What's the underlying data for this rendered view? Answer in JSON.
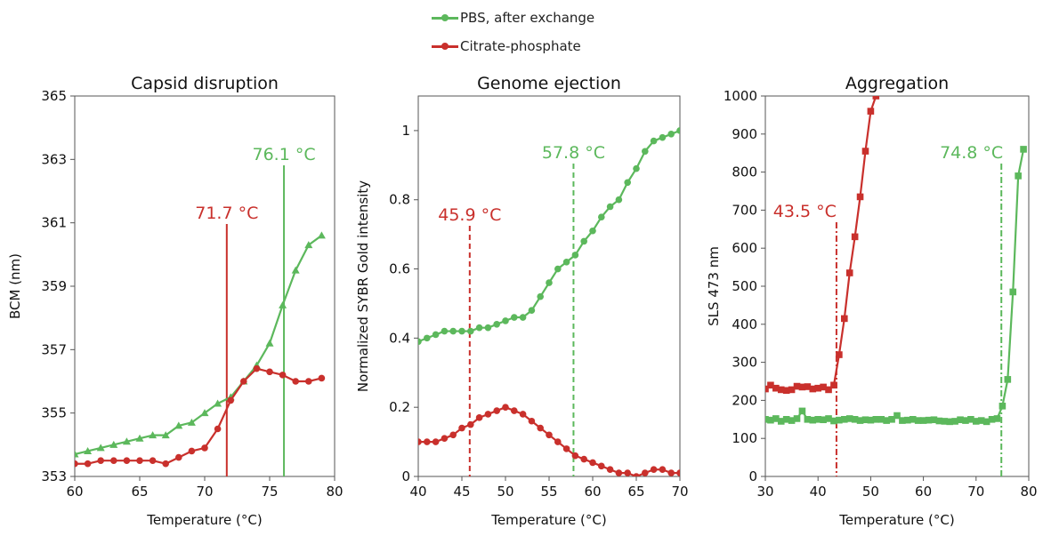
{
  "legend": {
    "items": [
      {
        "label": "PBS, after exchange",
        "color": "#5cb85c"
      },
      {
        "label": "Citrate-phosphate",
        "color": "#c9302c"
      }
    ]
  },
  "colors": {
    "green": "#5cb85c",
    "red": "#c9302c",
    "axis": "#555555"
  },
  "chart_data": [
    {
      "type": "line",
      "title": "Capsid disruption",
      "xlabel": "Temperature (°C)",
      "ylabel": "BCM (nm)",
      "xlim": [
        60,
        80
      ],
      "ylim": [
        353,
        365
      ],
      "xticks": [
        60,
        65,
        70,
        75,
        80
      ],
      "yticks": [
        353,
        355,
        357,
        359,
        361,
        363,
        365
      ],
      "series": [
        {
          "name": "PBS, after exchange",
          "color": "#5cb85c",
          "marker": "triangle",
          "x": [
            60,
            61,
            62,
            63,
            64,
            65,
            66,
            67,
            68,
            69,
            70,
            71,
            72,
            73,
            74,
            75,
            76,
            77,
            78,
            79
          ],
          "y": [
            353.7,
            353.8,
            353.9,
            354.0,
            354.1,
            354.2,
            354.3,
            354.3,
            354.6,
            354.7,
            355.0,
            355.3,
            355.5,
            356.0,
            356.5,
            357.2,
            358.4,
            359.5,
            360.3,
            360.6
          ]
        },
        {
          "name": "Citrate-phosphate",
          "color": "#c9302c",
          "marker": "circle",
          "x": [
            60,
            61,
            62,
            63,
            64,
            65,
            66,
            67,
            68,
            69,
            70,
            71,
            72,
            73,
            74,
            75,
            76,
            77,
            78,
            79
          ],
          "y": [
            353.4,
            353.4,
            353.5,
            353.5,
            353.5,
            353.5,
            353.5,
            353.4,
            353.6,
            353.8,
            353.9,
            354.5,
            355.4,
            356.0,
            356.4,
            356.3,
            356.2,
            356.0,
            356.0,
            356.1
          ]
        }
      ],
      "annotations": [
        {
          "text": "76.1 °C",
          "x": 76.1,
          "color": "#5cb85c",
          "style": "solid"
        },
        {
          "text": "71.7 °C",
          "x": 71.7,
          "color": "#c9302c",
          "style": "solid"
        }
      ]
    },
    {
      "type": "line",
      "title": "Genome ejection",
      "xlabel": "Temperature (°C)",
      "ylabel": "Normalized SYBR Gold intensity",
      "xlim": [
        40,
        70
      ],
      "ylim": [
        0,
        1.1
      ],
      "xticks": [
        40,
        45,
        50,
        55,
        60,
        65,
        70
      ],
      "yticks": [
        0,
        0.2,
        0.4,
        0.6,
        0.8,
        1
      ],
      "series": [
        {
          "name": "PBS, after exchange",
          "color": "#5cb85c",
          "marker": "circle",
          "x": [
            40,
            41,
            42,
            43,
            44,
            45,
            46,
            47,
            48,
            49,
            50,
            51,
            52,
            53,
            54,
            55,
            56,
            57,
            58,
            59,
            60,
            61,
            62,
            63,
            64,
            65,
            66,
            67,
            68,
            69,
            70
          ],
          "y": [
            0.39,
            0.4,
            0.41,
            0.42,
            0.42,
            0.42,
            0.42,
            0.43,
            0.43,
            0.44,
            0.45,
            0.46,
            0.46,
            0.48,
            0.52,
            0.56,
            0.6,
            0.62,
            0.64,
            0.68,
            0.71,
            0.75,
            0.78,
            0.8,
            0.85,
            0.89,
            0.94,
            0.97,
            0.98,
            0.99,
            1.0
          ]
        },
        {
          "name": "Citrate-phosphate",
          "color": "#c9302c",
          "marker": "circle",
          "x": [
            40,
            41,
            42,
            43,
            44,
            45,
            46,
            47,
            48,
            49,
            50,
            51,
            52,
            53,
            54,
            55,
            56,
            57,
            58,
            59,
            60,
            61,
            62,
            63,
            64,
            65,
            66,
            67,
            68,
            69,
            70
          ],
          "y": [
            0.1,
            0.1,
            0.1,
            0.11,
            0.12,
            0.14,
            0.15,
            0.17,
            0.18,
            0.19,
            0.2,
            0.19,
            0.18,
            0.16,
            0.14,
            0.12,
            0.1,
            0.08,
            0.06,
            0.05,
            0.04,
            0.03,
            0.02,
            0.01,
            0.01,
            0.0,
            0.01,
            0.02,
            0.02,
            0.01,
            0.01
          ]
        }
      ],
      "annotations": [
        {
          "text": "57.8 °C",
          "x": 57.8,
          "color": "#5cb85c",
          "style": "dashed"
        },
        {
          "text": "45.9 °C",
          "x": 45.9,
          "color": "#c9302c",
          "style": "dashed"
        }
      ]
    },
    {
      "type": "line",
      "title": "Aggregation",
      "xlabel": "Temperature (°C)",
      "ylabel": "SLS 473 nm",
      "xlim": [
        30,
        80
      ],
      "ylim": [
        0,
        1000
      ],
      "xticks": [
        30,
        40,
        50,
        60,
        70,
        80
      ],
      "yticks": [
        0,
        100,
        200,
        300,
        400,
        500,
        600,
        700,
        800,
        900,
        1000
      ],
      "series": [
        {
          "name": "PBS, after exchange",
          "color": "#5cb85c",
          "marker": "square",
          "x": [
            30,
            31,
            32,
            33,
            34,
            35,
            36,
            37,
            38,
            39,
            40,
            41,
            42,
            43,
            44,
            45,
            46,
            47,
            48,
            49,
            50,
            51,
            52,
            53,
            54,
            55,
            56,
            57,
            58,
            59,
            60,
            61,
            62,
            63,
            64,
            65,
            66,
            67,
            68,
            69,
            70,
            71,
            72,
            73,
            74,
            75,
            76,
            77,
            78,
            79
          ],
          "y": [
            150,
            148,
            152,
            145,
            150,
            147,
            152,
            172,
            150,
            148,
            150,
            149,
            152,
            146,
            148,
            150,
            152,
            150,
            147,
            149,
            148,
            150,
            150,
            147,
            150,
            160,
            147,
            148,
            150,
            147,
            147,
            148,
            149,
            146,
            145,
            144,
            145,
            149,
            147,
            150,
            145,
            147,
            144,
            150,
            152,
            185,
            255,
            485,
            790,
            860
          ]
        },
        {
          "name": "Citrate-phosphate",
          "color": "#c9302c",
          "marker": "square",
          "x": [
            30,
            31,
            32,
            33,
            34,
            35,
            36,
            37,
            38,
            39,
            40,
            41,
            42,
            43,
            44,
            45,
            46,
            47,
            48,
            49,
            50,
            51
          ],
          "y": [
            230,
            240,
            232,
            228,
            226,
            228,
            237,
            235,
            236,
            230,
            232,
            235,
            228,
            240,
            320,
            415,
            535,
            630,
            735,
            855,
            960,
            1000
          ]
        }
      ],
      "annotations": [
        {
          "text": "74.8 °C",
          "x": 74.8,
          "color": "#5cb85c",
          "style": "dashdot"
        },
        {
          "text": "43.5 °C",
          "x": 43.5,
          "color": "#c9302c",
          "style": "dashdot"
        }
      ]
    }
  ]
}
